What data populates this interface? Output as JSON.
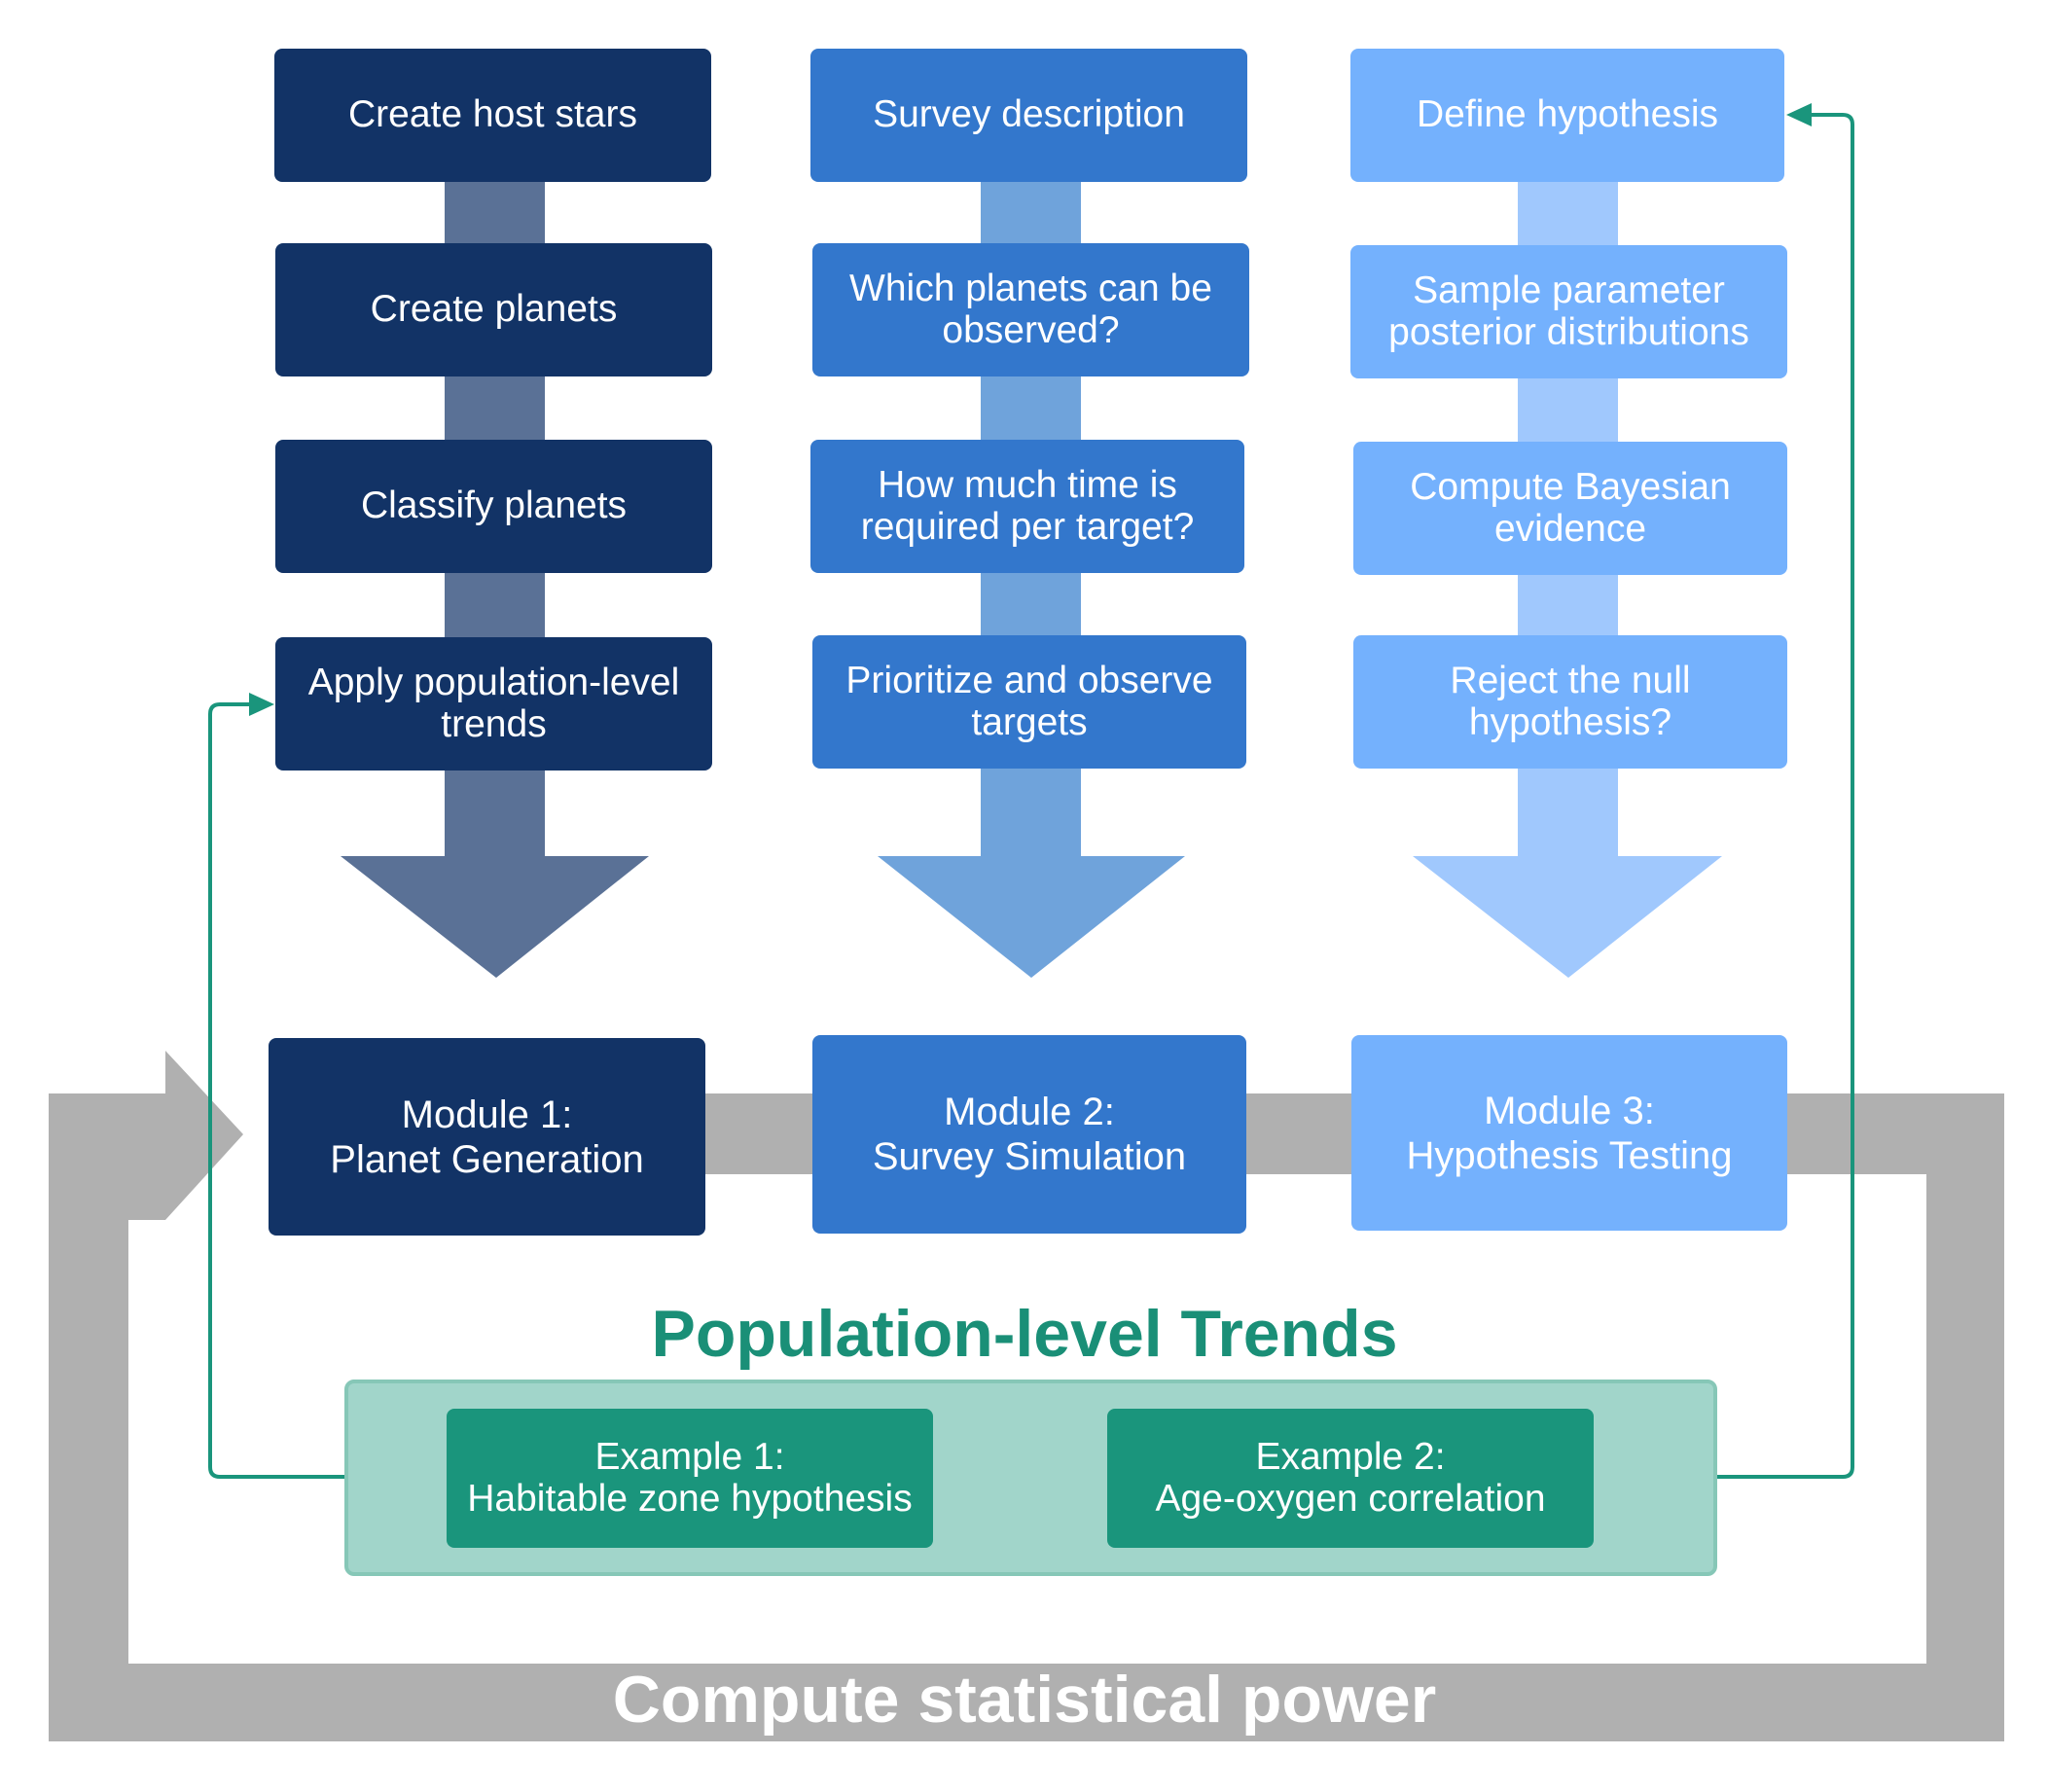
{
  "modules": [
    {
      "steps": [
        "Create host stars",
        "Create planets",
        "Classify planets",
        "Apply population-level\ntrends"
      ],
      "label": "Module 1:\nPlanet Generation"
    },
    {
      "steps": [
        "Survey description",
        "Which planets can be\nobserved?",
        "How much time is\nrequired per target?",
        "Prioritize and observe\ntargets"
      ],
      "label": "Module 2:\nSurvey Simulation"
    },
    {
      "steps": [
        "Define hypothesis",
        "Sample parameter\nposterior distributions",
        "Compute Bayesian\nevidence",
        "Reject the null\nhypothesis?"
      ],
      "label": "Module 3:\nHypothesis Testing"
    }
  ],
  "trends": {
    "title": "Population-level Trends",
    "examples": [
      "Example 1:\nHabitable zone hypothesis",
      "Example 2:\nAge-oxygen correlation"
    ]
  },
  "loop_label": "Compute statistical power",
  "colors": {
    "module1": "#123366",
    "module2": "#3377cc",
    "module3": "#74b1fd",
    "arrow1": "#5a7196",
    "arrow2": "#6fa3db",
    "arrow3": "#a0c8fd",
    "trend": "#1a957c",
    "loop": "#b0b0b0"
  }
}
